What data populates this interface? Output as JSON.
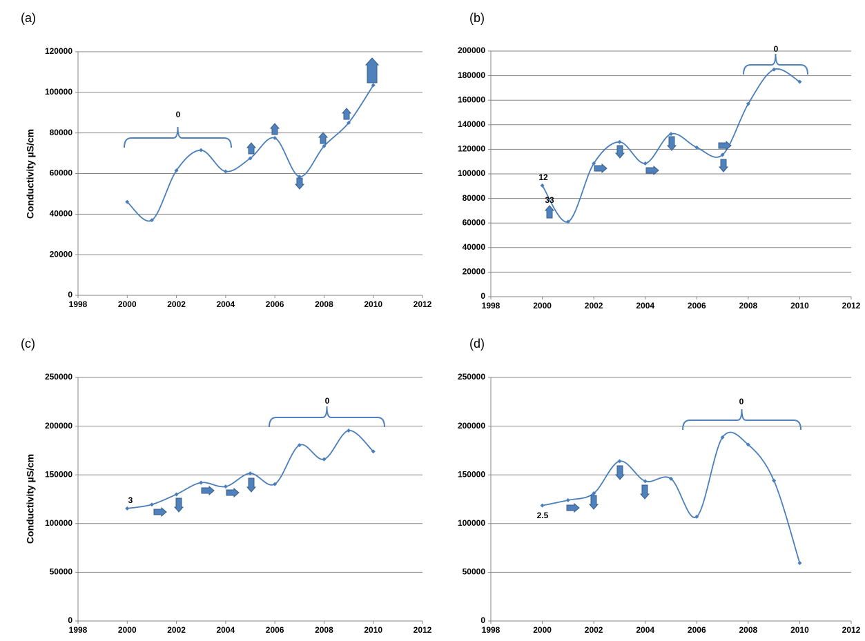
{
  "chart_data": [
    {
      "type": "line",
      "panel_label": "(a)",
      "ylabel": "Conductivity  µS/cm",
      "x": [
        2000,
        2001,
        2002,
        2003,
        2004,
        2005,
        2006,
        2007,
        2008,
        2009,
        2010
      ],
      "series": [
        {
          "color": "#4a7ebb",
          "values": [
            46000,
            37000,
            61500,
            71500,
            61000,
            67500,
            77500,
            58500,
            73500,
            85000,
            103500
          ]
        }
      ],
      "xlim": [
        1998,
        2012
      ],
      "xticks": [
        1998,
        2000,
        2002,
        2004,
        2006,
        2008,
        2010,
        2012
      ],
      "ylim": [
        0,
        120000
      ],
      "yticks": [
        0,
        20000,
        40000,
        60000,
        80000,
        100000,
        120000
      ],
      "grid": true,
      "annotations": [
        "0"
      ]
    },
    {
      "type": "line",
      "panel_label": "(b)",
      "x": [
        2000,
        2001,
        2002,
        2003,
        2004,
        2005,
        2006,
        2007,
        2008,
        2009,
        2010
      ],
      "series": [
        {
          "color": "#4a7ebb",
          "values": [
            90500,
            61000,
            108500,
            126000,
            108500,
            132500,
            121500,
            115500,
            157000,
            185000,
            175000
          ]
        }
      ],
      "xlim": [
        1998,
        2012
      ],
      "xticks": [
        1998,
        2000,
        2002,
        2004,
        2006,
        2008,
        2010,
        2012
      ],
      "ylim": [
        0,
        200000
      ],
      "yticks": [
        0,
        20000,
        40000,
        60000,
        80000,
        100000,
        120000,
        140000,
        160000,
        180000,
        200000
      ],
      "grid": true,
      "annotations": [
        "12",
        "33",
        "0"
      ]
    },
    {
      "type": "line",
      "panel_label": "(c)",
      "ylabel": "Conductivity  µS/cm",
      "x": [
        2000,
        2001,
        2002,
        2003,
        2004,
        2005,
        2006,
        2007,
        2008,
        2009,
        2010
      ],
      "series": [
        {
          "color": "#4a7ebb",
          "values": [
            115500,
            119500,
            130000,
            142000,
            138000,
            151500,
            140500,
            180500,
            166000,
            195500,
            174000
          ]
        }
      ],
      "xlim": [
        1998,
        2012
      ],
      "xticks": [
        1998,
        2000,
        2002,
        2004,
        2006,
        2008,
        2010,
        2012
      ],
      "ylim": [
        0,
        250000
      ],
      "yticks": [
        0,
        50000,
        100000,
        150000,
        200000,
        250000
      ],
      "grid": true,
      "annotations": [
        "3",
        "0"
      ]
    },
    {
      "type": "line",
      "panel_label": "(d)",
      "x": [
        2000,
        2001,
        2002,
        2003,
        2004,
        2005,
        2006,
        2007,
        2008,
        2009,
        2010
      ],
      "series": [
        {
          "color": "#4a7ebb",
          "values": [
            118500,
            124000,
            131000,
            164000,
            143500,
            146000,
            107000,
            188500,
            181000,
            144000,
            59500
          ]
        }
      ],
      "xlim": [
        1998,
        2012
      ],
      "xticks": [
        1998,
        2000,
        2002,
        2004,
        2006,
        2008,
        2010,
        2012
      ],
      "ylim": [
        0,
        250000
      ],
      "yticks": [
        0,
        50000,
        100000,
        150000,
        200000,
        250000
      ],
      "grid": true,
      "annotations": [
        "2.5",
        "0"
      ]
    }
  ]
}
